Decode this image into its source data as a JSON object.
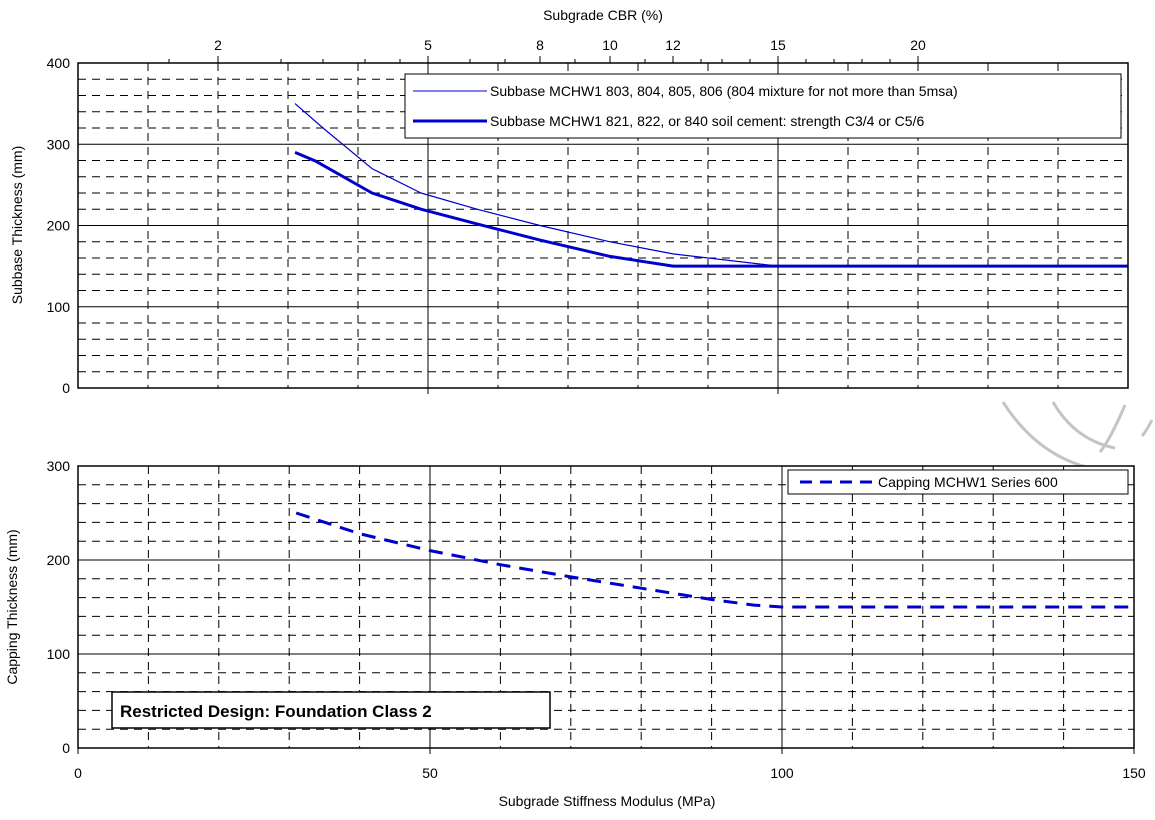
{
  "chart_data": [
    {
      "type": "line",
      "id": "subbase",
      "ylabel": "Subbase Thickness (mm)",
      "top_axis_label": "Subgrade CBR (%)",
      "top_ticks": [
        {
          "label": "2",
          "modulus": 20
        },
        {
          "label": "5",
          "modulus": 50
        },
        {
          "label": "8",
          "modulus": 66
        },
        {
          "label": "10",
          "modulus": 76
        },
        {
          "label": "12",
          "modulus": 85
        },
        {
          "label": "15",
          "modulus": 100
        },
        {
          "label": "20",
          "modulus": 120
        }
      ],
      "top_minor_ticks": [
        13,
        29,
        35,
        41,
        46,
        56,
        61,
        71,
        81,
        89,
        92,
        96,
        104,
        108,
        112,
        116
      ],
      "xlim": [
        0,
        150
      ],
      "ylim": [
        0,
        400
      ],
      "yticks": [
        0,
        100,
        200,
        300,
        400
      ],
      "legend_position": "top-right",
      "series": [
        {
          "name": "Subbase MCHW1 803, 804, 805, 806 (804 mixture for not more than 5msa)",
          "style": "thin",
          "color": "#0000cc",
          "x": [
            31,
            35,
            42,
            49,
            57,
            66,
            76,
            85,
            100,
            150
          ],
          "y": [
            350,
            320,
            270,
            240,
            220,
            200,
            180,
            165,
            150,
            150
          ]
        },
        {
          "name": "Subbase MCHW1 821, 822, or 840 soil cement: strength C3/4 or C5/6",
          "style": "thick",
          "color": "#0000cc",
          "x": [
            31,
            34,
            42,
            49,
            57,
            66,
            76,
            85,
            100,
            150
          ],
          "y": [
            290,
            279,
            240,
            220,
            202,
            182,
            162,
            150,
            150,
            150
          ]
        }
      ]
    },
    {
      "type": "line",
      "id": "capping",
      "ylabel": "Capping Thickness (mm)",
      "xlabel": "Subgrade Stiffness Modulus (MPa)",
      "xlim": [
        0,
        150
      ],
      "xticks": [
        0,
        50,
        100,
        150
      ],
      "ylim": [
        0,
        300
      ],
      "yticks": [
        0,
        100,
        200,
        300
      ],
      "legend_position": "top-right",
      "annotation": "Restricted Design: Foundation Class 2",
      "series": [
        {
          "name": "Capping MCHW1 Series 600",
          "style": "dashed",
          "color": "#0000cc",
          "x": [
            31,
            40,
            50,
            60,
            70,
            80,
            90,
            96,
            100,
            150
          ],
          "y": [
            250,
            228,
            210,
            195,
            182,
            170,
            158,
            152,
            150,
            150
          ]
        }
      ]
    }
  ]
}
